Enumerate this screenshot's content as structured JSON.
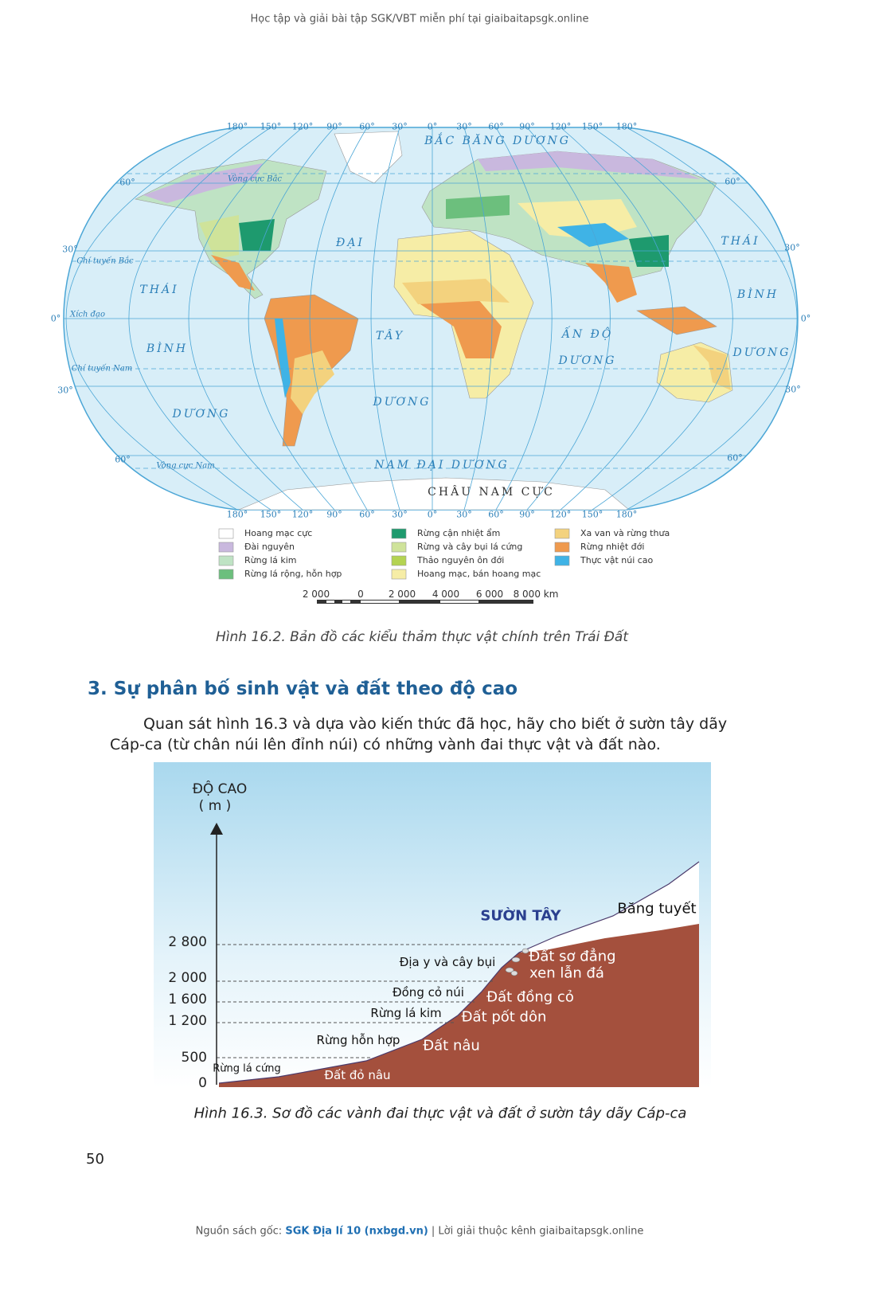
{
  "header": "Học tập và giải bài tập SGK/VBT miễn phí tại giaibaitapsgk.online",
  "map": {
    "top_longitudes": [
      "180°",
      "150°",
      "120°",
      "90°",
      "60°",
      "30°",
      "0°",
      "30°",
      "60°",
      "90°",
      "120°",
      "150°",
      "180°"
    ],
    "bottom_longitudes": [
      "180°",
      "150°",
      "120°",
      "90°",
      "60°",
      "30°",
      "0°",
      "30°",
      "60°",
      "90°",
      "120°",
      "150°",
      "180°"
    ],
    "latitudes_left": [
      "60°",
      "30°",
      "0°",
      "30°",
      "60°"
    ],
    "latitudes_right": [
      "60°",
      "30°",
      "0°",
      "30°",
      "60°"
    ],
    "line_labels": [
      "Vòng cực Bắc",
      "Chí tuyến Bắc",
      "Xích đạo",
      "Chí tuyến Nam",
      "Vòng cực Nam"
    ],
    "ocean_labels": [
      "BẮC BĂNG DƯƠNG",
      "ĐẠI",
      "TÂY",
      "DƯƠNG",
      "THÁI",
      "BÌNH",
      "DƯƠNG",
      "THÁI",
      "BÌNH",
      "DƯƠNG",
      "ẤN ĐỘ",
      "DƯƠNG",
      "NAM ĐẠI DƯƠNG"
    ],
    "continent_label": "CHÂU NAM CỰC"
  },
  "legend": [
    {
      "label": "Hoang mạc cực",
      "color": "#ffffff"
    },
    {
      "label": "Đài nguyên",
      "color": "#c9b8de"
    },
    {
      "label": "Rừng lá kim",
      "color": "#bfe3c4"
    },
    {
      "label": "Rừng lá rộng, hỗn hợp",
      "color": "#6cbf7d"
    },
    {
      "label": "Rừng cận nhiệt ẩm",
      "color": "#1e9a6e"
    },
    {
      "label": "Rừng và cây bụi lá cứng",
      "color": "#cfe39a"
    },
    {
      "label": "Thảo nguyên ôn đới",
      "color": "#b4d352"
    },
    {
      "label": "Hoang mạc, bán hoang mạc",
      "color": "#f6eda6"
    },
    {
      "label": "Xa van và rừng thưa",
      "color": "#f3d27e"
    },
    {
      "label": "Rừng nhiệt đới",
      "color": "#ef9a4e"
    },
    {
      "label": "Thực vật núi cao",
      "color": "#3fb3e6"
    }
  ],
  "scale_labels": [
    "2 000",
    "0",
    "2 000",
    "4 000",
    "6 000",
    "8 000 km"
  ],
  "map_caption": "Hình 16.2. Bản đồ các kiểu thảm thực vật chính trên Trái Đất",
  "section_title": "3. Sự phân bố sinh vật và đất theo độ cao",
  "paragraph": [
    "Quan sát hình 16.3 và dựa vào kiến thức đã học, hãy cho biết ở sườn tây dãy",
    "Cáp-ca (từ chân núi lên đỉnh núi) có những vành đai thực vật và đất nào."
  ],
  "diagram": {
    "axis_title": [
      "ĐỘ CAO",
      "( m )"
    ],
    "altitude_labels": [
      "2 800",
      "2 000",
      "1 600",
      "1 200",
      "500",
      "0"
    ],
    "slope_label": "SƯỜN TÂY",
    "vegetation": [
      "Rừng lá cứng",
      "Rừng hỗn hợp",
      "Rừng lá kim",
      "Đồng cỏ núi",
      "Địa y và cây bụi",
      "Băng tuyết"
    ],
    "soils": [
      "Đất đỏ nâu",
      "Đất nâu",
      "Đất pốt dôn",
      "Đất đồng cỏ",
      "Đất sơ đẳng",
      "xen lẫn đá"
    ]
  },
  "diagram_caption": "Hình 16.3. Sơ đồ các vành đai thực vật và đất ở sườn tây dãy Cáp-ca",
  "page_number": "50",
  "footer": {
    "prefix": "Nguồn sách gốc:",
    "source": "SGK Địa lí 10 (nxbgd.vn)",
    "suffix": "| Lời giải thuộc kênh giaibaitapsgk.online"
  }
}
